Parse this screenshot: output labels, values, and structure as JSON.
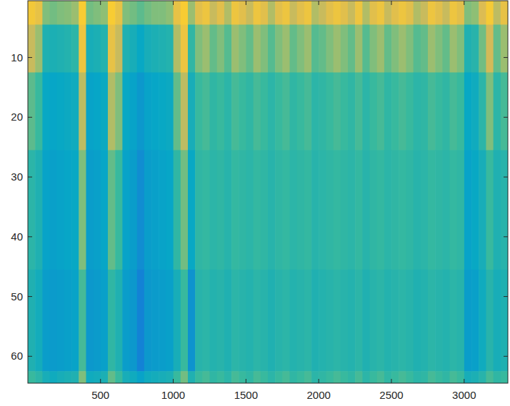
{
  "chart_data": {
    "type": "heatmap",
    "xlim": [
      0.5,
      3300.5
    ],
    "ylim": [
      0.5,
      64.5
    ],
    "xticks": [
      500,
      1000,
      1500,
      2000,
      2500,
      3000
    ],
    "yticks": [
      10,
      20,
      30,
      40,
      50,
      60
    ],
    "clim": [
      0,
      1
    ],
    "x_edges": [
      0.5,
      50.5,
      100.5,
      150.5,
      200.5,
      250.5,
      300.5,
      350.5,
      400.5,
      450.5,
      500.5,
      550.5,
      600.5,
      650.5,
      700.5,
      750.5,
      800.5,
      850.5,
      900.5,
      950.5,
      1000.5,
      1050.5,
      1100.5,
      1150.5,
      1200.5,
      1250.5,
      1300.5,
      1350.5,
      1400.5,
      1450.5,
      1500.5,
      1550.5,
      1600.5,
      1650.5,
      1700.5,
      1750.5,
      1800.5,
      1850.5,
      1900.5,
      1950.5,
      2000.5,
      2050.5,
      2100.5,
      2150.5,
      2200.5,
      2250.5,
      2300.5,
      2350.5,
      2400.5,
      2450.5,
      2500.5,
      2550.5,
      2600.5,
      2650.5,
      2700.5,
      2750.5,
      2800.5,
      2850.5,
      2900.5,
      2950.5,
      3000.5,
      3050.5,
      3100.5,
      3150.5,
      3200.5,
      3250.5,
      3300.5
    ],
    "y_edges": [
      0.5,
      4.5,
      12.5,
      25.5,
      45.5,
      62.5,
      64.5
    ],
    "columns": [
      [
        0.84,
        0.72,
        0.55,
        0.47,
        0.44,
        0.5
      ],
      [
        0.8,
        0.64,
        0.5,
        0.44,
        0.41,
        0.47
      ],
      [
        0.6,
        0.44,
        0.38,
        0.36,
        0.34,
        0.42
      ],
      [
        0.58,
        0.43,
        0.37,
        0.35,
        0.33,
        0.4
      ],
      [
        0.6,
        0.44,
        0.38,
        0.36,
        0.34,
        0.42
      ],
      [
        0.61,
        0.45,
        0.39,
        0.37,
        0.35,
        0.43
      ],
      [
        0.64,
        0.47,
        0.4,
        0.38,
        0.36,
        0.44
      ],
      [
        0.86,
        0.82,
        0.7,
        0.6,
        0.52,
        0.6
      ],
      [
        0.58,
        0.42,
        0.36,
        0.34,
        0.32,
        0.4
      ],
      [
        0.6,
        0.43,
        0.37,
        0.35,
        0.33,
        0.41
      ],
      [
        0.62,
        0.45,
        0.39,
        0.37,
        0.35,
        0.43
      ],
      [
        0.86,
        0.8,
        0.68,
        0.56,
        0.48,
        0.56
      ],
      [
        0.8,
        0.72,
        0.6,
        0.5,
        0.44,
        0.5
      ],
      [
        0.6,
        0.44,
        0.38,
        0.36,
        0.34,
        0.42
      ],
      [
        0.58,
        0.42,
        0.36,
        0.34,
        0.32,
        0.4
      ],
      [
        0.55,
        0.38,
        0.32,
        0.28,
        0.24,
        0.36
      ],
      [
        0.58,
        0.42,
        0.36,
        0.34,
        0.32,
        0.4
      ],
      [
        0.6,
        0.43,
        0.37,
        0.35,
        0.33,
        0.41
      ],
      [
        0.6,
        0.44,
        0.38,
        0.36,
        0.34,
        0.42
      ],
      [
        0.62,
        0.45,
        0.39,
        0.37,
        0.35,
        0.43
      ],
      [
        0.8,
        0.68,
        0.56,
        0.48,
        0.42,
        0.5
      ],
      [
        0.86,
        0.82,
        0.7,
        0.58,
        0.5,
        0.58
      ],
      [
        0.64,
        0.48,
        0.42,
        0.38,
        0.3,
        0.44
      ],
      [
        0.78,
        0.6,
        0.5,
        0.48,
        0.46,
        0.5
      ],
      [
        0.82,
        0.64,
        0.52,
        0.49,
        0.47,
        0.52
      ],
      [
        0.72,
        0.56,
        0.48,
        0.47,
        0.45,
        0.48
      ],
      [
        0.78,
        0.6,
        0.5,
        0.48,
        0.46,
        0.5
      ],
      [
        0.68,
        0.54,
        0.47,
        0.46,
        0.44,
        0.47
      ],
      [
        0.82,
        0.64,
        0.52,
        0.49,
        0.47,
        0.52
      ],
      [
        0.78,
        0.6,
        0.5,
        0.48,
        0.46,
        0.5
      ],
      [
        0.72,
        0.56,
        0.48,
        0.47,
        0.45,
        0.48
      ],
      [
        0.82,
        0.64,
        0.52,
        0.49,
        0.47,
        0.52
      ],
      [
        0.78,
        0.6,
        0.5,
        0.48,
        0.46,
        0.5
      ],
      [
        0.68,
        0.54,
        0.47,
        0.46,
        0.44,
        0.47
      ],
      [
        0.78,
        0.6,
        0.5,
        0.48,
        0.46,
        0.5
      ],
      [
        0.82,
        0.64,
        0.52,
        0.49,
        0.47,
        0.52
      ],
      [
        0.72,
        0.56,
        0.48,
        0.47,
        0.45,
        0.48
      ],
      [
        0.78,
        0.6,
        0.5,
        0.48,
        0.46,
        0.5
      ],
      [
        0.82,
        0.64,
        0.52,
        0.49,
        0.47,
        0.52
      ],
      [
        0.68,
        0.54,
        0.47,
        0.46,
        0.44,
        0.47
      ],
      [
        0.72,
        0.56,
        0.48,
        0.47,
        0.45,
        0.48
      ],
      [
        0.78,
        0.6,
        0.5,
        0.48,
        0.46,
        0.5
      ],
      [
        0.82,
        0.64,
        0.52,
        0.49,
        0.47,
        0.52
      ],
      [
        0.78,
        0.6,
        0.5,
        0.48,
        0.46,
        0.5
      ],
      [
        0.72,
        0.56,
        0.48,
        0.47,
        0.45,
        0.48
      ],
      [
        0.82,
        0.64,
        0.52,
        0.49,
        0.47,
        0.52
      ],
      [
        0.68,
        0.54,
        0.47,
        0.46,
        0.44,
        0.47
      ],
      [
        0.78,
        0.6,
        0.5,
        0.48,
        0.46,
        0.5
      ],
      [
        0.82,
        0.64,
        0.52,
        0.49,
        0.47,
        0.52
      ],
      [
        0.72,
        0.56,
        0.48,
        0.47,
        0.45,
        0.48
      ],
      [
        0.78,
        0.6,
        0.5,
        0.48,
        0.46,
        0.5
      ],
      [
        0.82,
        0.64,
        0.52,
        0.49,
        0.47,
        0.52
      ],
      [
        0.78,
        0.6,
        0.5,
        0.48,
        0.46,
        0.5
      ],
      [
        0.68,
        0.54,
        0.47,
        0.46,
        0.44,
        0.47
      ],
      [
        0.72,
        0.56,
        0.48,
        0.47,
        0.45,
        0.48
      ],
      [
        0.82,
        0.64,
        0.52,
        0.49,
        0.47,
        0.52
      ],
      [
        0.78,
        0.6,
        0.5,
        0.48,
        0.46,
        0.5
      ],
      [
        0.72,
        0.56,
        0.48,
        0.47,
        0.45,
        0.48
      ],
      [
        0.82,
        0.64,
        0.52,
        0.49,
        0.47,
        0.52
      ],
      [
        0.78,
        0.6,
        0.5,
        0.48,
        0.46,
        0.5
      ],
      [
        0.6,
        0.44,
        0.38,
        0.36,
        0.34,
        0.42
      ],
      [
        0.62,
        0.46,
        0.4,
        0.38,
        0.35,
        0.43
      ],
      [
        0.76,
        0.58,
        0.47,
        0.42,
        0.4,
        0.46
      ],
      [
        0.85,
        0.74,
        0.6,
        0.5,
        0.46,
        0.52
      ],
      [
        0.7,
        0.56,
        0.47,
        0.44,
        0.42,
        0.48
      ],
      [
        0.8,
        0.64,
        0.52,
        0.46,
        0.44,
        0.5
      ]
    ]
  }
}
